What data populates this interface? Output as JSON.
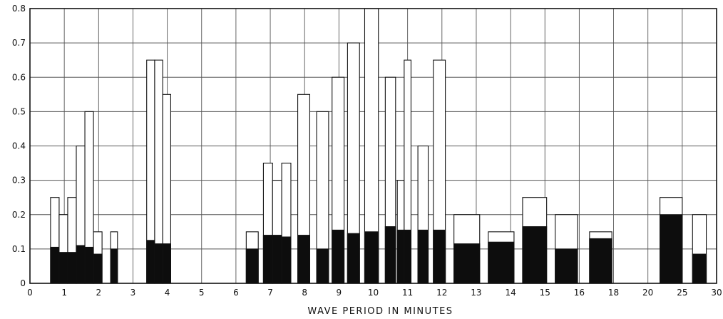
{
  "chart_data": {
    "type": "bar",
    "stacked": true,
    "title": "",
    "xlabel": "WAVE PERIOD IN MINUTES",
    "ylabel": "",
    "ylim": [
      0,
      0.8
    ],
    "grid": true,
    "x_ticks": [
      "0",
      "1",
      "2",
      "3",
      "4",
      "5",
      "6",
      "7",
      "8",
      "9",
      "10",
      "11",
      "12",
      "13",
      "14",
      "15",
      "16",
      "18",
      "20",
      "25",
      "30"
    ],
    "y_ticks": [
      "0",
      "0.1",
      "0.2",
      "0.3",
      "0.4",
      "0.5",
      "0.6",
      "0.7",
      "0.8"
    ],
    "bar_groups": [
      {
        "x_start": 0.6,
        "x_end": 2.1,
        "lower": [
          0.105,
          0.09,
          0.09,
          0.11,
          0.105,
          0.085
        ],
        "total": [
          0.25,
          0.2,
          0.25,
          0.4,
          0.5,
          0.15
        ]
      },
      {
        "x_start": 2.35,
        "x_end": 2.55,
        "lower": [
          0.1
        ],
        "total": [
          0.15
        ]
      },
      {
        "x_start": 3.4,
        "x_end": 4.1,
        "lower": [
          0.125,
          0.115,
          0.115
        ],
        "total": [
          0.65,
          0.65,
          0.55
        ]
      },
      {
        "x_start": 6.3,
        "x_end": 6.65,
        "lower": [
          0.1
        ],
        "total": [
          0.15
        ]
      },
      {
        "x_start": 6.8,
        "x_end": 7.6,
        "lower": [
          0.14,
          0.14,
          0.135
        ],
        "total": [
          0.35,
          0.3,
          0.35
        ]
      },
      {
        "x_start": 7.8,
        "x_end": 8.15,
        "lower": [
          0.14
        ],
        "total": [
          0.55
        ]
      },
      {
        "x_start": 8.35,
        "x_end": 8.7,
        "lower": [
          0.1
        ],
        "total": [
          0.5
        ]
      },
      {
        "x_start": 8.8,
        "x_end": 9.15,
        "lower": [
          0.155
        ],
        "total": [
          0.6
        ]
      },
      {
        "x_start": 9.25,
        "x_end": 9.6,
        "lower": [
          0.145
        ],
        "total": [
          0.7
        ]
      },
      {
        "x_start": 9.75,
        "x_end": 10.15,
        "lower": [
          0.15
        ],
        "total": [
          0.8
        ]
      },
      {
        "x_start": 10.35,
        "x_end": 10.65,
        "lower": [
          0.165
        ],
        "total": [
          0.6
        ]
      },
      {
        "x_start": 10.7,
        "x_end": 10.9,
        "lower": [
          0.155
        ],
        "total": [
          0.3
        ]
      },
      {
        "x_start": 10.9,
        "x_end": 11.1,
        "lower": [
          0.155
        ],
        "total": [
          0.65
        ]
      },
      {
        "x_start": 11.3,
        "x_end": 11.6,
        "lower": [
          0.155
        ],
        "total": [
          0.4
        ]
      },
      {
        "x_start": 11.75,
        "x_end": 12.1,
        "lower": [
          0.155
        ],
        "total": [
          0.65
        ]
      },
      {
        "x_start": 12.35,
        "x_end": 13.1,
        "lower": [
          0.115
        ],
        "total": [
          0.2
        ]
      },
      {
        "x_start": 13.35,
        "x_end": 14.1,
        "lower": [
          0.12
        ],
        "total": [
          0.15
        ]
      },
      {
        "x_start": 14.35,
        "x_end": 15.05,
        "lower": [
          0.165
        ],
        "total": [
          0.25
        ]
      },
      {
        "x_start": 15.3,
        "x_end": 15.95,
        "lower": [
          0.1
        ],
        "total": [
          0.2
        ]
      },
      {
        "x_start": 16.3,
        "x_end": 16.95,
        "lower": [
          0.13
        ],
        "total": [
          0.15
        ]
      },
      {
        "x_start": 18.35,
        "x_end": 19.0,
        "lower": [
          0.2
        ],
        "total": [
          0.25
        ]
      },
      {
        "x_start": 19.3,
        "x_end": 19.7,
        "lower": [
          0.085
        ],
        "total": [
          0.2
        ]
      }
    ]
  }
}
